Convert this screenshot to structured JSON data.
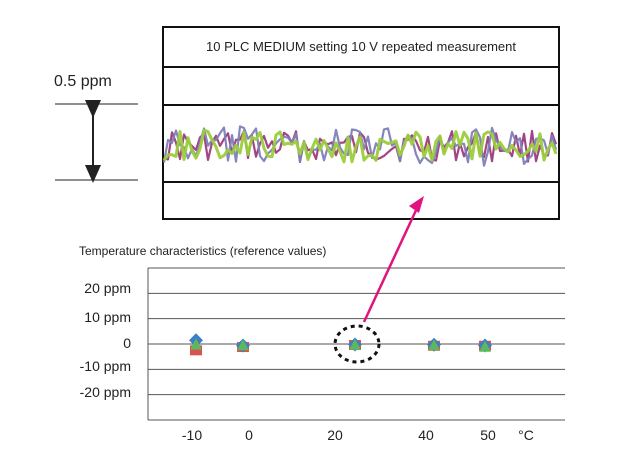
{
  "scale_label": "0.5 ppm",
  "top_chart": {
    "title": "10 PLC MEDIUM setting  10 V repeated measurement",
    "colors": [
      "#9c3c7e",
      "#7d7fb8",
      "#9ccc3c"
    ]
  },
  "chart_data": {
    "type": "scatter",
    "title": "Temperature characteristics (reference values)",
    "x_unit": "°C",
    "x_ticks": [
      "-10",
      "0",
      "20",
      "40",
      "50"
    ],
    "y_ticks": [
      "20 ppm",
      "10 ppm",
      "0",
      "-10 ppm",
      "-20 ppm"
    ],
    "ylim": [
      -30,
      30
    ],
    "grid": true,
    "series": [
      {
        "marker": "square",
        "color": "#d9534f",
        "points": [
          {
            "x": -10,
            "y": -2.5
          },
          {
            "x": 0,
            "y": -1.2
          },
          {
            "x": 20,
            "y": -0.4
          },
          {
            "x": 40,
            "y": -0.7
          },
          {
            "x": 50,
            "y": -0.7
          }
        ]
      },
      {
        "marker": "diamond",
        "color": "#3d7fc7",
        "points": [
          {
            "x": -10,
            "y": 1.5
          },
          {
            "x": 0,
            "y": -0.6
          },
          {
            "x": 20,
            "y": -0.2
          },
          {
            "x": 40,
            "y": -0.3
          },
          {
            "x": 50,
            "y": -0.6
          }
        ]
      },
      {
        "marker": "triangle",
        "color": "#5cb85c",
        "points": [
          {
            "x": -10,
            "y": -0.2
          },
          {
            "x": 0,
            "y": -0.5
          },
          {
            "x": 20,
            "y": -0.3
          },
          {
            "x": 40,
            "y": -0.5
          },
          {
            "x": 50,
            "y": -1.1
          }
        ]
      }
    ],
    "highlight": {
      "x": 20,
      "y": 0
    }
  }
}
